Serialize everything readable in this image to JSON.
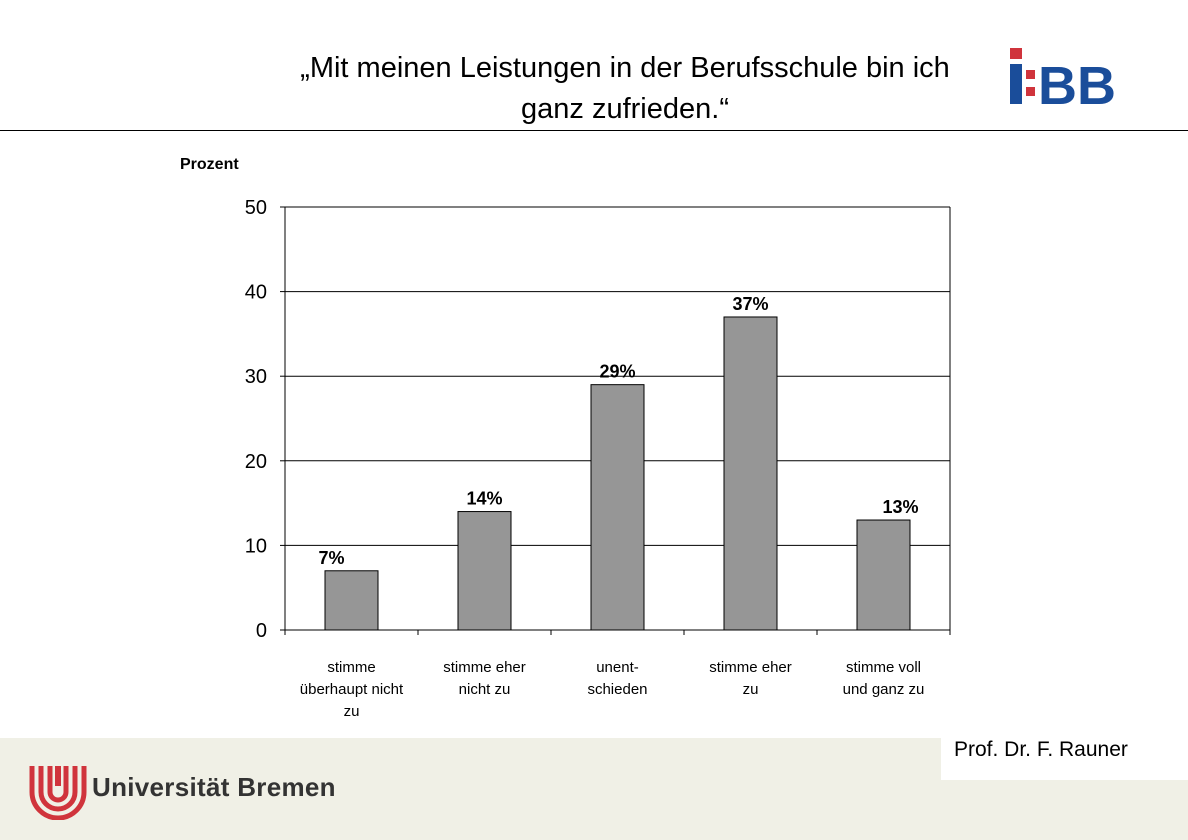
{
  "header": {
    "title_line1": "„Mit meinen Leistungen in der Berufsschule bin ich",
    "title_line2": "ganz zufrieden.“",
    "logo_text": "i:BB"
  },
  "chart_data": {
    "type": "bar",
    "ylabel": "Prozent",
    "ylim": [
      0,
      50
    ],
    "yticks": [
      0,
      10,
      20,
      30,
      40,
      50
    ],
    "grid": true,
    "categories": [
      [
        "stimme",
        "überhaupt nicht",
        "zu"
      ],
      [
        "stimme eher",
        "nicht zu"
      ],
      [
        "unent-",
        "schieden"
      ],
      [
        "stimme eher",
        "zu"
      ],
      [
        "stimme voll",
        "und ganz zu"
      ]
    ],
    "values": [
      7,
      14,
      29,
      37,
      13
    ],
    "data_labels": [
      "7%",
      "14%",
      "29%",
      "37%",
      "13%"
    ],
    "bar_color": "#969696"
  },
  "footer": {
    "author": "Prof. Dr. F. Rauner",
    "university": "Universität Bremen",
    "brand_color": "#d0343c"
  }
}
